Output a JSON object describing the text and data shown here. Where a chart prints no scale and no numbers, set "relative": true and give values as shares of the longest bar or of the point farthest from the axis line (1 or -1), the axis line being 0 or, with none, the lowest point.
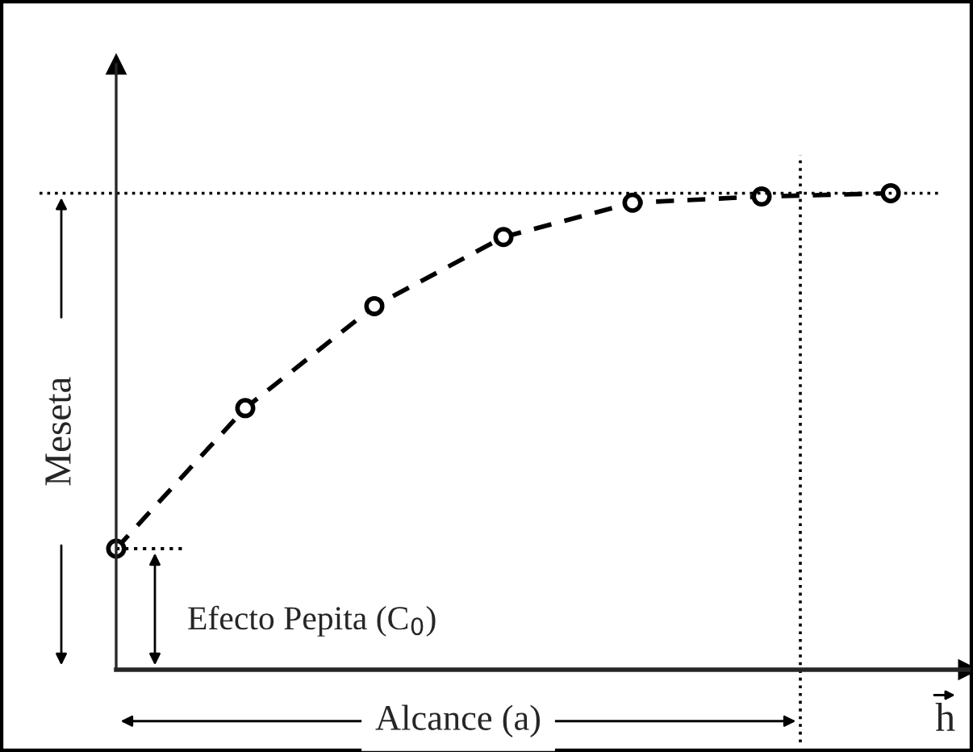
{
  "chart_data": {
    "type": "line",
    "relative": true,
    "marker": "circle",
    "line_style": "dashed",
    "xlabel": "h",
    "ylabel": "Meseta",
    "categories": [
      null,
      null,
      null,
      null,
      null,
      null,
      null
    ],
    "series": [
      {
        "color": "#000000",
        "values": [
          0.254,
          0.549,
          0.763,
          0.908,
          0.98,
          0.993,
          1.0
        ]
      }
    ],
    "ref_lines": [
      {
        "axis": "y",
        "value": 1.0,
        "color": "#000000",
        "line_style": "dotted"
      }
    ],
    "annotations": [
      "Efecto Pepita (C$_{0}$)",
      "Alcance (a)"
    ]
  }
}
